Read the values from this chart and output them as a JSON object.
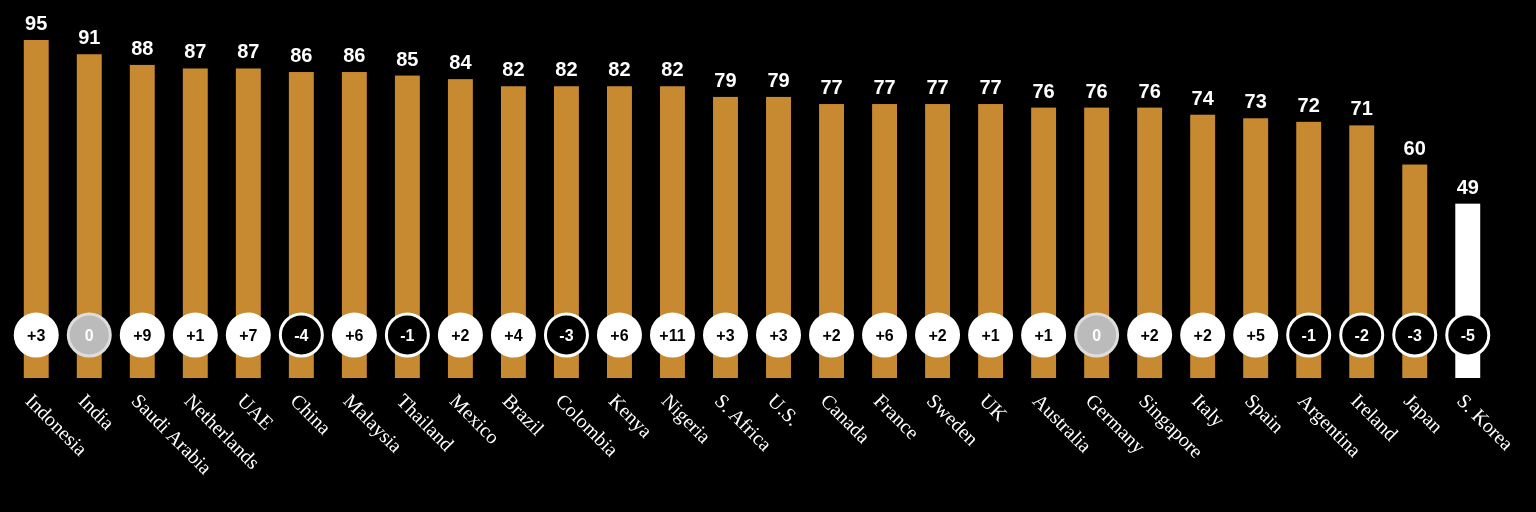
{
  "chart_data": {
    "type": "bar",
    "categories": [
      "Indonesia",
      "India",
      "Saudi Arabia",
      "Netherlands",
      "UAE",
      "China",
      "Malaysia",
      "Thailand",
      "Mexico",
      "Brazil",
      "Colombia",
      "Kenya",
      "Nigeria",
      "S. Africa",
      "U.S.",
      "Canada",
      "France",
      "Sweden",
      "UK",
      "Australia",
      "Germany",
      "Singapore",
      "Italy",
      "Spain",
      "Argentina",
      "Ireland",
      "Japan",
      "S. Korea"
    ],
    "values": [
      95,
      91,
      88,
      87,
      87,
      86,
      86,
      85,
      84,
      82,
      82,
      82,
      82,
      79,
      79,
      77,
      77,
      77,
      77,
      76,
      76,
      76,
      74,
      73,
      72,
      71,
      60,
      49
    ],
    "colors": [
      "#c88a30",
      "#c88a30",
      "#c88a30",
      "#c88a30",
      "#c88a30",
      "#c88a30",
      "#c88a30",
      "#c88a30",
      "#c88a30",
      "#c88a30",
      "#c88a30",
      "#c88a30",
      "#c88a30",
      "#c88a30",
      "#c88a30",
      "#c88a30",
      "#c88a30",
      "#c88a30",
      "#c88a30",
      "#c88a30",
      "#c88a30",
      "#c88a30",
      "#c88a30",
      "#c88a30",
      "#c88a30",
      "#c88a30",
      "#c88a30",
      "#ffffff"
    ],
    "data_labels": true,
    "annotations": [
      {
        "text": "+3",
        "x": "Indonesia"
      },
      {
        "text": "0",
        "x": "India"
      },
      {
        "text": "+9",
        "x": "Saudi Arabia"
      },
      {
        "text": "+1",
        "x": "Netherlands"
      },
      {
        "text": "+7",
        "x": "UAE"
      },
      {
        "text": "-4",
        "x": "China"
      },
      {
        "text": "+6",
        "x": "Malaysia"
      },
      {
        "text": "-1",
        "x": "Thailand"
      },
      {
        "text": "+2",
        "x": "Mexico"
      },
      {
        "text": "+4",
        "x": "Brazil"
      },
      {
        "text": "-3",
        "x": "Colombia"
      },
      {
        "text": "+6",
        "x": "Kenya"
      },
      {
        "text": "+11",
        "x": "Nigeria"
      },
      {
        "text": "+3",
        "x": "S. Africa"
      },
      {
        "text": "+3",
        "x": "U.S."
      },
      {
        "text": "+2",
        "x": "Canada"
      },
      {
        "text": "+6",
        "x": "France"
      },
      {
        "text": "+2",
        "x": "Sweden"
      },
      {
        "text": "+1",
        "x": "UK"
      },
      {
        "text": "+1",
        "x": "Australia"
      },
      {
        "text": "0",
        "x": "Germany"
      },
      {
        "text": "+2",
        "x": "Singapore"
      },
      {
        "text": "+2",
        "x": "Italy"
      },
      {
        "text": "+5",
        "x": "Spain"
      },
      {
        "text": "-1",
        "x": "Argentina"
      },
      {
        "text": "-2",
        "x": "Ireland"
      },
      {
        "text": "-3",
        "x": "Japan"
      },
      {
        "text": "-5",
        "x": "S. Korea"
      }
    ]
  }
}
